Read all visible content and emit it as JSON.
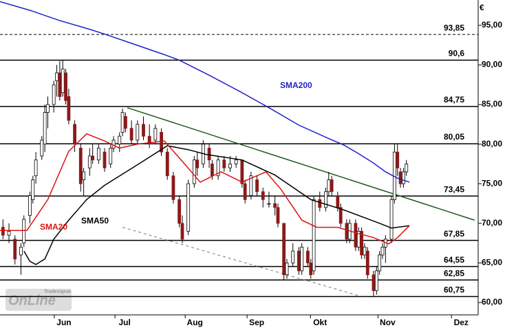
{
  "chart_data": {
    "type": "candlestick",
    "currency": "€",
    "xlim": [
      0,
      160
    ],
    "ylim": [
      58.44,
      98.2
    ],
    "xticks": [
      {
        "value": 21.4,
        "label": "Jun"
      },
      {
        "value": 41.7,
        "label": "Jul"
      },
      {
        "value": 65.2,
        "label": "Aug"
      },
      {
        "value": 85.9,
        "label": "Sep"
      },
      {
        "value": 107.1,
        "label": "Okt"
      },
      {
        "value": 129.7,
        "label": "Nov"
      },
      {
        "value": 154.3,
        "label": "Dez"
      }
    ],
    "yticks": [
      {
        "value": 60,
        "label": "60,00"
      },
      {
        "value": 65,
        "label": "65,00"
      },
      {
        "value": 70,
        "label": "70,00"
      },
      {
        "value": 75,
        "label": "75,00"
      },
      {
        "value": 80,
        "label": "80,00"
      },
      {
        "value": 85,
        "label": "85,00"
      },
      {
        "value": 90,
        "label": "90,00"
      },
      {
        "value": 95,
        "label": "95,00"
      }
    ],
    "levels": [
      {
        "value": 93.85,
        "label": "93,85",
        "dashed": true
      },
      {
        "value": 90.6,
        "label": "90,6"
      },
      {
        "value": 84.75,
        "label": "84,75"
      },
      {
        "value": 80.05,
        "label": "80,05"
      },
      {
        "value": 73.45,
        "label": "73,45"
      },
      {
        "value": 67.85,
        "label": "67,85"
      },
      {
        "value": 64.55,
        "label": "64,55"
      },
      {
        "value": 62.85,
        "label": "62,85"
      },
      {
        "value": 60.75,
        "label": "60,75"
      }
    ],
    "up_color": "#ffffff",
    "down_color": "#8b1a1a",
    "candles": {
      "x": [
        1,
        3,
        5,
        7,
        8,
        10,
        11,
        12,
        14,
        15,
        16,
        18,
        19,
        20,
        21,
        22,
        23,
        25,
        27,
        28,
        30,
        31,
        33,
        35,
        37,
        38,
        40,
        41,
        42,
        44,
        46,
        48,
        50,
        52,
        54,
        56,
        58,
        60,
        61,
        63,
        65,
        66,
        68,
        70,
        71,
        73,
        75,
        77,
        79,
        81,
        82,
        84,
        86,
        88,
        90,
        92,
        93,
        95,
        96,
        98,
        100,
        101,
        103,
        104,
        105,
        107,
        109,
        110,
        111,
        113,
        114,
        116,
        117,
        119,
        120,
        121,
        122,
        123,
        125,
        126,
        127,
        128,
        129,
        131,
        132,
        133,
        134,
        135,
        136
      ],
      "open": [
        69.5,
        68.5,
        68,
        66,
        67.5,
        71,
        73,
        76,
        78.5,
        80,
        84,
        85,
        88,
        89,
        86.5,
        89,
        86,
        82.5,
        79.5,
        75.5,
        77,
        78.5,
        78,
        79,
        77.5,
        79.5,
        80,
        81.5,
        83.5,
        82,
        80.5,
        82.5,
        81,
        80.5,
        81.5,
        79,
        76,
        73,
        70,
        69,
        75,
        78,
        77.5,
        79.5,
        77.5,
        76,
        78,
        77,
        77.5,
        78,
        75,
        73.5,
        75.5,
        74,
        72.5,
        72.5,
        72,
        70,
        63.5,
        65,
        66.5,
        64,
        66.5,
        65,
        64,
        73,
        72,
        74,
        75.5,
        73.5,
        72,
        70,
        68,
        70,
        67,
        69,
        66,
        66.5,
        63.5,
        61.5,
        64,
        66,
        67,
        68,
        73,
        79,
        76.5,
        75,
        76.5
      ],
      "high": [
        70.5,
        70,
        68.5,
        67.5,
        71,
        74,
        76,
        79,
        81,
        85,
        86,
        88,
        90,
        90.5,
        90.6,
        89.5,
        87,
        83,
        80,
        77,
        79.5,
        80,
        80,
        79.5,
        80,
        81,
        81.5,
        84.5,
        84,
        83,
        83,
        83.5,
        82.5,
        82.5,
        82,
        79.5,
        76.5,
        73.5,
        71,
        75.5,
        78.5,
        79,
        80.5,
        80,
        78,
        78.5,
        78.5,
        78.5,
        78.5,
        78,
        75.5,
        76.5,
        76,
        74.5,
        74,
        73.5,
        72.5,
        70,
        65.5,
        67.5,
        67,
        67.5,
        67,
        65.5,
        73.5,
        74,
        74.5,
        76.5,
        76,
        74,
        72.5,
        70.5,
        70.5,
        70.5,
        69.5,
        69.5,
        67.5,
        67,
        64,
        64.5,
        66.5,
        67.5,
        68.5,
        73.5,
        80,
        80,
        77,
        77,
        78
      ],
      "low": [
        68,
        67.5,
        64.8,
        63.5,
        67,
        70,
        72.5,
        75,
        78,
        79,
        82,
        84,
        86,
        85.5,
        86,
        85,
        82.5,
        79,
        74,
        73.5,
        76,
        77.5,
        77.5,
        76.5,
        77,
        79,
        79,
        81,
        81.5,
        80,
        80,
        80.5,
        79.5,
        80,
        78.5,
        75.5,
        72.5,
        69.5,
        67.5,
        68.5,
        74.5,
        76,
        77,
        77,
        75.5,
        75.5,
        76.5,
        76.5,
        77,
        74.5,
        72.5,
        73,
        73.5,
        72,
        72,
        71,
        69.5,
        62.8,
        63,
        64.5,
        63.5,
        63.5,
        64.5,
        63,
        63.5,
        71.5,
        71.5,
        73.5,
        73.5,
        71.5,
        69.5,
        67.5,
        67.5,
        66.5,
        66.5,
        65.5,
        65.5,
        63,
        60.8,
        61,
        63.5,
        65.5,
        65,
        67.5,
        72.5,
        76,
        74.5,
        74.5,
        76
      ],
      "close": [
        68.5,
        69,
        65.5,
        67,
        70.5,
        73.5,
        75.5,
        78,
        80.5,
        84,
        85,
        87.5,
        89,
        86,
        89.5,
        85.5,
        83,
        80,
        75,
        76.5,
        78.5,
        78,
        79.5,
        77,
        79.5,
        80.5,
        81,
        84,
        82,
        80.5,
        82.5,
        81,
        80,
        82,
        79,
        76,
        73,
        70,
        68,
        75,
        78,
        77,
        80,
        78,
        76,
        78,
        77,
        77.5,
        78,
        75,
        73,
        76,
        74,
        73,
        72.5,
        72,
        70,
        63.5,
        65,
        66.5,
        64,
        67,
        65,
        63.5,
        73,
        72,
        74,
        75.5,
        74,
        72,
        70,
        68,
        70,
        67,
        69,
        66,
        67,
        63.5,
        61.5,
        64,
        66,
        67,
        68,
        73,
        79,
        77,
        75,
        76.5,
        77.5
      ]
    },
    "series": [
      {
        "name": "SMA200",
        "color": "#1f1fcc",
        "x": [
          0,
          10,
          20,
          30,
          35,
          45,
          55,
          60,
          70,
          80,
          90,
          100,
          110,
          115,
          120,
          125,
          129,
          133,
          137
        ],
        "values": [
          98.0,
          96.9,
          95.6,
          94.5,
          93.9,
          92.6,
          91.3,
          90.6,
          88.7,
          86.7,
          84.6,
          82.4,
          80.7,
          79.9,
          78.8,
          77.6,
          76.5,
          75.7,
          75.2
        ]
      },
      {
        "name": "SMA50",
        "color": "#000000",
        "x": [
          8,
          10,
          12,
          15,
          18,
          23,
          29,
          35,
          46,
          56,
          63,
          69,
          81,
          92,
          104,
          115,
          127,
          131,
          137
        ],
        "values": [
          66.5,
          65.2,
          64.8,
          65.5,
          68,
          70.4,
          73,
          74.8,
          77.4,
          79.8,
          79.3,
          78.7,
          78.0,
          76.1,
          73.0,
          71.7,
          70.0,
          69.4,
          69.7
        ]
      },
      {
        "name": "SMA20",
        "color": "#e01010",
        "x": [
          0,
          9,
          16,
          23,
          29,
          35,
          40,
          46,
          55,
          62,
          67,
          74,
          81,
          89,
          94,
          101,
          106,
          113,
          120,
          125,
          130,
          133,
          137
        ],
        "values": [
          69.1,
          69.1,
          73,
          79.1,
          81.3,
          80.4,
          79.5,
          80,
          80.4,
          77.4,
          75.2,
          76.5,
          75.2,
          76.5,
          74.3,
          70.4,
          69.5,
          69.5,
          68.7,
          68.2,
          67.4,
          68.2,
          69.7
        ]
      }
    ],
    "trendlines": [
      {
        "color": "#1a5c1a",
        "x": [
          42.6,
          158.8
        ],
        "values": [
          84.6,
          70.4
        ]
      },
      {
        "color": "#777777",
        "dashed": true,
        "x": [
          41,
          119.7
        ],
        "values": [
          69.5,
          60.9
        ]
      }
    ],
    "logo": {
      "brand": "Tradesignal",
      "product": "OnLine"
    }
  }
}
